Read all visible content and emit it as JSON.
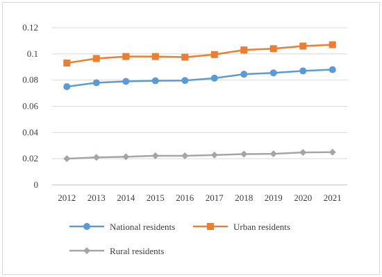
{
  "chart_data": {
    "type": "line",
    "title": "",
    "xlabel": "",
    "ylabel": "",
    "categories": [
      "2012",
      "2013",
      "2014",
      "2015",
      "2016",
      "2017",
      "2018",
      "2019",
      "2020",
      "2021"
    ],
    "ylim": [
      0,
      0.12
    ],
    "y_ticks": [
      "0",
      "0.02",
      "0.04",
      "0.06",
      "0.08",
      "0.1",
      "0.12"
    ],
    "y_tick_values": [
      0,
      0.02,
      0.04,
      0.06,
      0.08,
      0.1,
      0.12
    ],
    "grid": true,
    "legend_position": "bottom",
    "series": [
      {
        "name": "National residents",
        "color": "#5b9bd5",
        "marker": "circle",
        "values": [
          0.075,
          0.078,
          0.079,
          0.0795,
          0.0797,
          0.0815,
          0.0845,
          0.0855,
          0.087,
          0.088
        ]
      },
      {
        "name": "Urban residents",
        "color": "#ed7d31",
        "marker": "square",
        "values": [
          0.093,
          0.0965,
          0.098,
          0.098,
          0.0975,
          0.0995,
          0.103,
          0.104,
          0.106,
          0.107
        ]
      },
      {
        "name": "Rural residents",
        "color": "#a5a5a5",
        "marker": "diamond",
        "values": [
          0.02,
          0.021,
          0.0215,
          0.0223,
          0.0222,
          0.0228,
          0.0235,
          0.0237,
          0.0248,
          0.025
        ]
      }
    ]
  }
}
